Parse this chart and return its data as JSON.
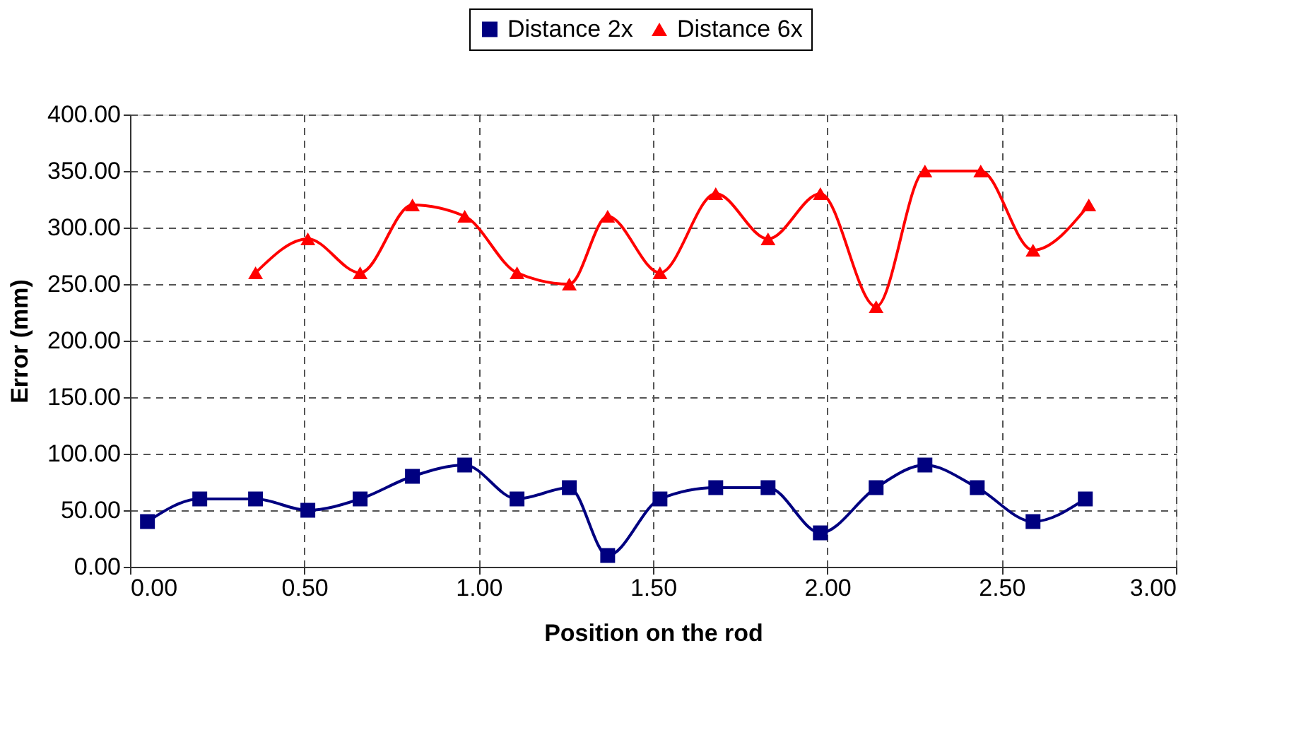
{
  "chart_data": {
    "type": "line",
    "xlabel": "Position on the rod",
    "ylabel": "Error (mm)",
    "xlim": [
      0,
      3
    ],
    "ylim": [
      0,
      400
    ],
    "xticks": [
      {
        "value": 0,
        "label": "0.00"
      },
      {
        "value": 0.5,
        "label": "0.50"
      },
      {
        "value": 1,
        "label": "1.00"
      },
      {
        "value": 1.5,
        "label": "1.50"
      },
      {
        "value": 2,
        "label": "2.00"
      },
      {
        "value": 2.5,
        "label": "2.50"
      },
      {
        "value": 3,
        "label": "3.00"
      }
    ],
    "yticks": [
      {
        "value": 0,
        "label": "0.00"
      },
      {
        "value": 50,
        "label": "50.00"
      },
      {
        "value": 100,
        "label": "100.00"
      },
      {
        "value": 150,
        "label": "150.00"
      },
      {
        "value": 200,
        "label": "200.00"
      },
      {
        "value": 250,
        "label": "250.00"
      },
      {
        "value": 300,
        "label": "300.00"
      },
      {
        "value": 350,
        "label": "350.00"
      },
      {
        "value": 400,
        "label": "400.00"
      }
    ],
    "grid": true,
    "legend": "top",
    "series": [
      {
        "name": "Distance 2x",
        "color": "#000080",
        "marker": "square",
        "x": [
          0.05,
          0.2,
          0.36,
          0.51,
          0.66,
          0.81,
          0.96,
          1.11,
          1.26,
          1.37,
          1.52,
          1.68,
          1.83,
          1.98,
          2.14,
          2.28,
          2.43,
          2.59,
          2.74
        ],
        "values": [
          40,
          60,
          60,
          50,
          60,
          80,
          90,
          60,
          70,
          10,
          60,
          70,
          70,
          30,
          70,
          90,
          70,
          40,
          60
        ]
      },
      {
        "name": "Distance 6x",
        "color": "#ff0000",
        "marker": "triangle",
        "x": [
          0.36,
          0.51,
          0.66,
          0.81,
          0.96,
          1.11,
          1.26,
          1.37,
          1.52,
          1.68,
          1.83,
          1.98,
          2.14,
          2.28,
          2.44,
          2.59,
          2.75
        ],
        "values": [
          260,
          290,
          260,
          320,
          310,
          260,
          250,
          310,
          260,
          330,
          290,
          330,
          230,
          350,
          350,
          280,
          320
        ]
      }
    ]
  }
}
